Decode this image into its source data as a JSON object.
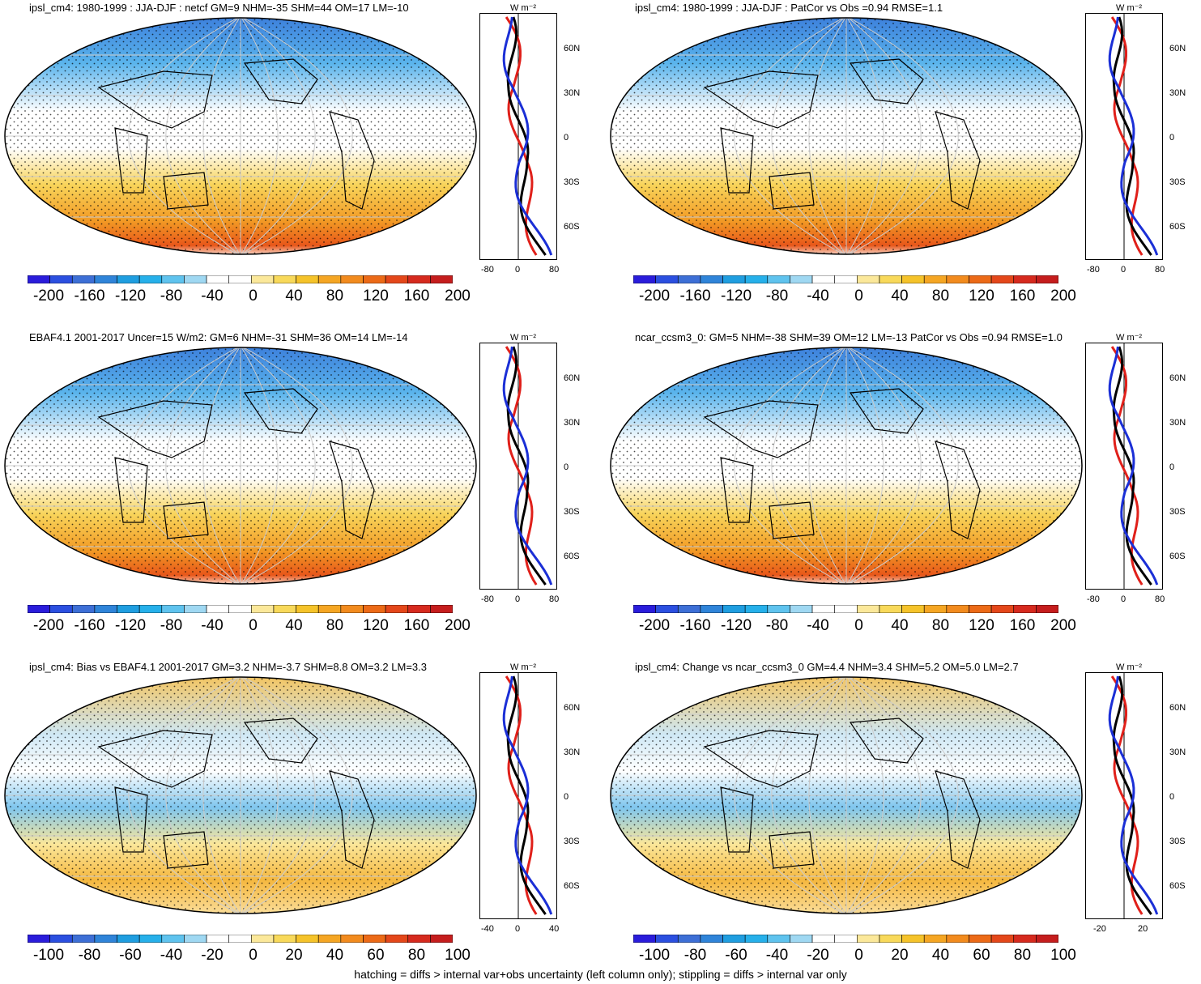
{
  "panels": [
    {
      "title": "ipsl_cm4: 1980-1999 : JJA-DJF : netcf GM=9 NHM=-35 SHM=44 OM=17 LM=-10",
      "colorbar_labels": [
        "-200",
        "-160",
        "-120",
        "-80",
        "-40",
        "0",
        "40",
        "80",
        "120",
        "160",
        "200"
      ],
      "profile": {
        "unit": "W m⁻²",
        "lat_labels": [
          "60N",
          "30N",
          "0",
          "30S",
          "60S"
        ],
        "x_labels": [
          "-80",
          "0",
          "80"
        ]
      }
    },
    {
      "title": "ipsl_cm4: 1980-1999 : JJA-DJF : PatCor vs Obs =0.94 RMSE=1.1",
      "colorbar_labels": [
        "-200",
        "-160",
        "-120",
        "-80",
        "-40",
        "0",
        "40",
        "80",
        "120",
        "160",
        "200"
      ],
      "profile": {
        "unit": "W m⁻²",
        "lat_labels": [
          "60N",
          "30N",
          "0",
          "30S",
          "60S"
        ],
        "x_labels": [
          "-80",
          "0",
          "80"
        ]
      }
    },
    {
      "title": "EBAF4.1 2001-2017 Uncer=15 W/m2: GM=6 NHM=-31 SHM=36 OM=14 LM=-14",
      "colorbar_labels": [
        "-200",
        "-160",
        "-120",
        "-80",
        "-40",
        "0",
        "40",
        "80",
        "120",
        "160",
        "200"
      ],
      "profile": {
        "unit": "W m⁻²",
        "lat_labels": [
          "60N",
          "30N",
          "0",
          "30S",
          "60S"
        ],
        "x_labels": [
          "-80",
          "0",
          "80"
        ]
      }
    },
    {
      "title": "ncar_ccsm3_0: GM=5 NHM=-38 SHM=39 OM=12 LM=-13 PatCor vs Obs =0.94 RMSE=1.0",
      "colorbar_labels": [
        "-200",
        "-160",
        "-120",
        "-80",
        "-40",
        "0",
        "40",
        "80",
        "120",
        "160",
        "200"
      ],
      "profile": {
        "unit": "W m⁻²",
        "lat_labels": [
          "60N",
          "30N",
          "0",
          "30S",
          "60S"
        ],
        "x_labels": [
          "-80",
          "0",
          "80"
        ]
      }
    },
    {
      "title": "ipsl_cm4: Bias vs EBAF4.1 2001-2017 GM=3.2 NHM=-3.7 SHM=8.8 OM=3.2 LM=3.3",
      "colorbar_labels": [
        "-100",
        "-80",
        "-60",
        "-40",
        "-20",
        "0",
        "20",
        "40",
        "60",
        "80",
        "100"
      ],
      "profile": {
        "unit": "W m⁻²",
        "lat_labels": [
          "60N",
          "30N",
          "0",
          "30S",
          "60S"
        ],
        "x_labels": [
          "-40",
          "0",
          "40"
        ]
      }
    },
    {
      "title": "ipsl_cm4: Change vs ncar_ccsm3_0 GM=4.4 NHM=3.4 SHM=5.2 OM=5.0 LM=2.7",
      "colorbar_labels": [
        "-100",
        "-80",
        "-60",
        "-40",
        "-20",
        "0",
        "20",
        "40",
        "60",
        "80",
        "100"
      ],
      "profile": {
        "unit": "W m⁻²",
        "lat_labels": [
          "60N",
          "30N",
          "0",
          "30S",
          "60S"
        ],
        "x_labels": [
          "-20",
          "20"
        ]
      }
    }
  ],
  "colors": {
    "palette": [
      "#2a1cdb",
      "#2b4fe0",
      "#3d6fd6",
      "#2f84d9",
      "#1f9ee0",
      "#26b0ea",
      "#5fc3ee",
      "#9fd8f2",
      "#ffffff",
      "#ffffff",
      "#fbe89a",
      "#f8d95a",
      "#f5c32a",
      "#f5a623",
      "#f28b1e",
      "#ec6a17",
      "#e4471a",
      "#d62a1e",
      "#c51d1d"
    ],
    "profile_series": [
      "#e0201a",
      "#000000",
      "#1b2fd6"
    ]
  },
  "footer": "hatching = diffs > internal var+obs uncertainty (left column only); stippling = diffs > internal var only"
}
